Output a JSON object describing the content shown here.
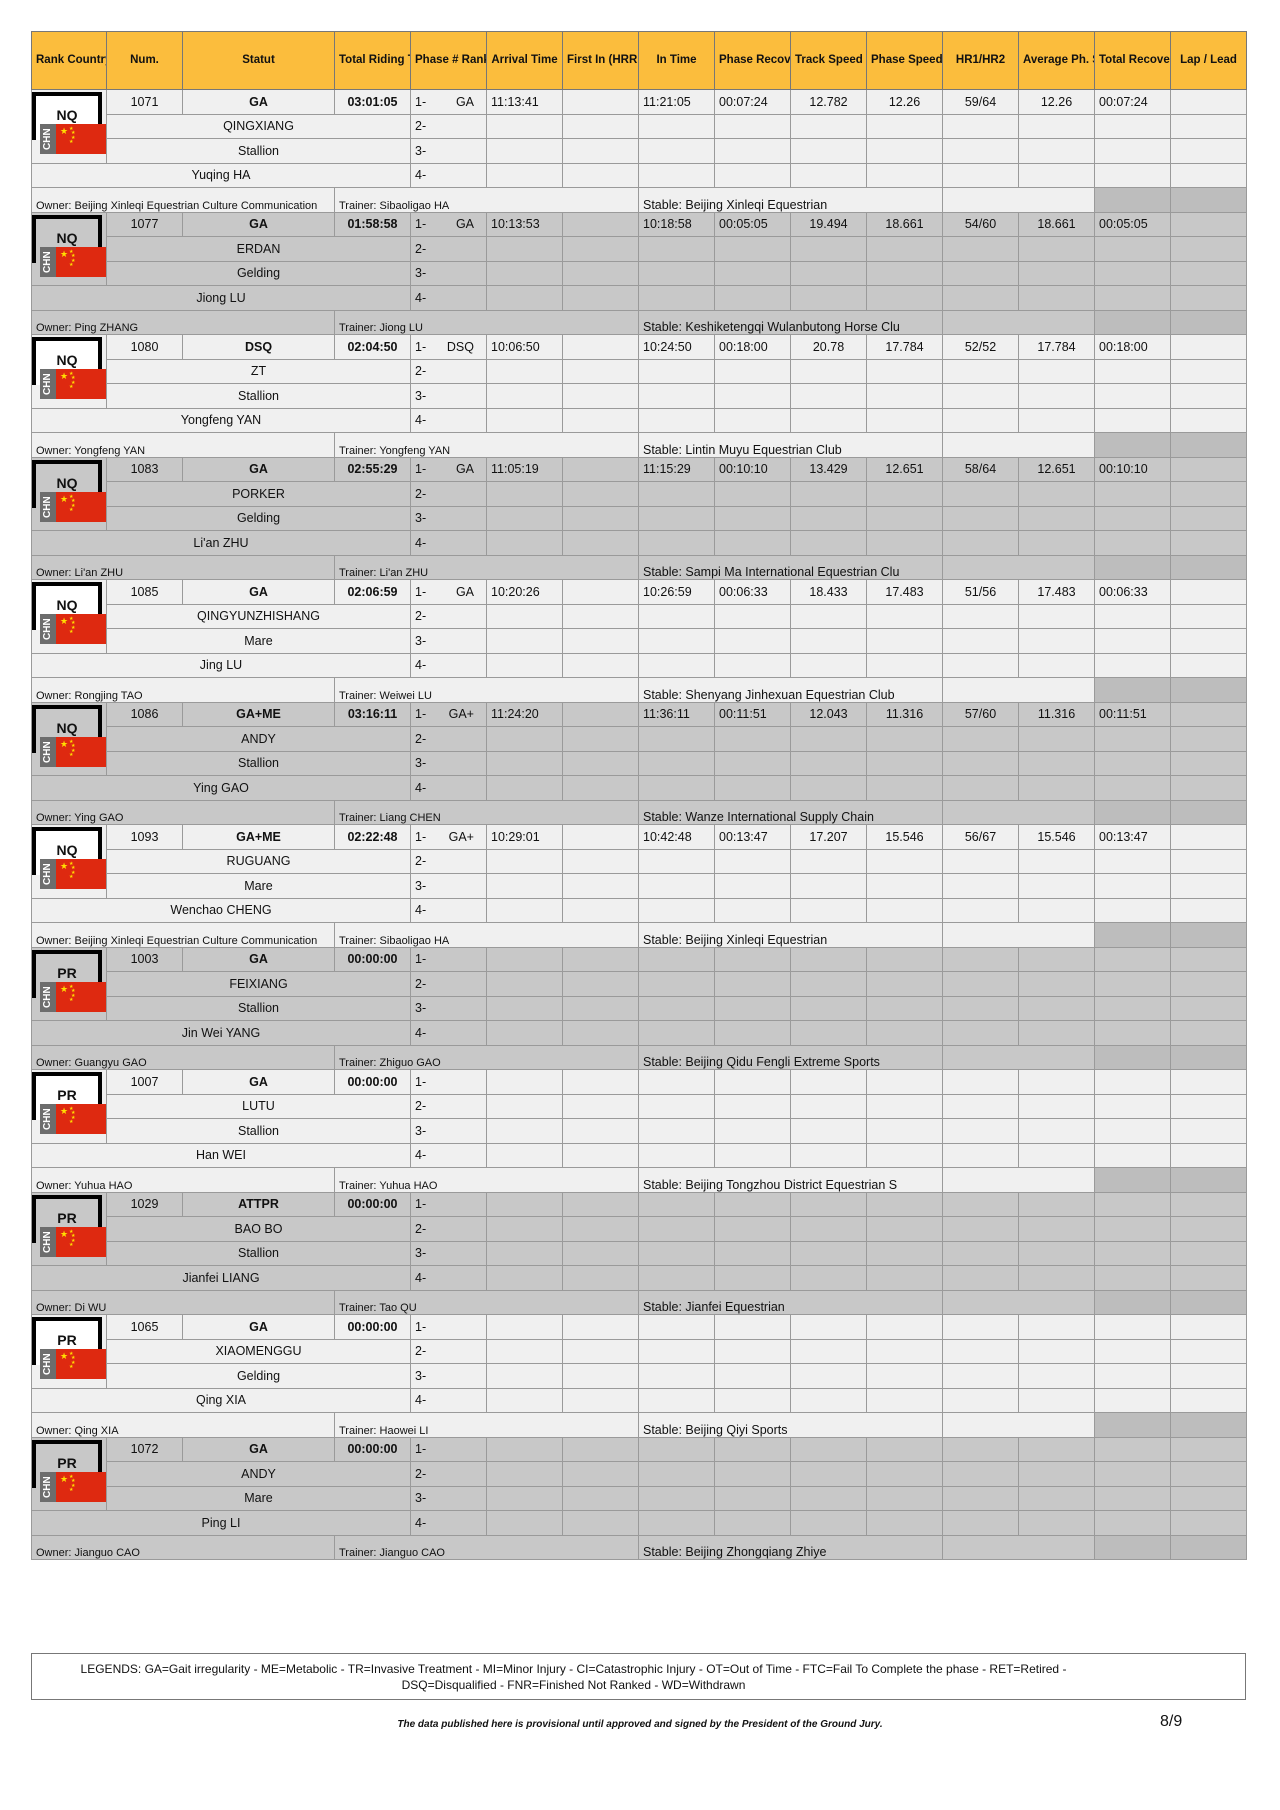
{
  "headers": [
    "Rank Country",
    "Num.",
    "Statut",
    "Total Riding T.",
    "Phase # Rank",
    "Arrival Time",
    "First In (HRRI)",
    "In Time",
    "Phase Recovery",
    "Track Speed",
    "Phase Speed",
    "HR1/HR2",
    "Average Ph. Speed",
    "Total Recovery",
    "Lap / Lead"
  ],
  "phase_labels": [
    "1-",
    "2-",
    "3-",
    "4-"
  ],
  "colors": {
    "header_bg": "#fbbd3d",
    "light_row": "#f0f0f0",
    "grey_row": "#c8c8c8",
    "flag_red": "#de2910"
  },
  "entries": [
    {
      "rank": "NQ",
      "country": "CHN",
      "num": "1071",
      "statut": "GA",
      "total": "03:01:05",
      "phase1_status": "GA",
      "arrival": "11:13:41",
      "first_in": "",
      "in_time": "11:21:05",
      "phase_recovery": "00:07:24",
      "track_speed": "12.782",
      "phase_speed": "12.26",
      "hr": "59/64",
      "avg_speed": "12.26",
      "total_recovery": "00:07:24",
      "lap_lead": "",
      "horse": "QINGXIANG",
      "gender": "Stallion",
      "rider": "Yuqing HA",
      "owner": "Owner: Beijing Xinleqi Equestrian Culture Communication",
      "trainer": "Trainer: Sibaoligao HA",
      "stable": "Stable: Beijing Xinleqi Equestrian"
    },
    {
      "rank": "NQ",
      "country": "CHN",
      "num": "1077",
      "statut": "GA",
      "total": "01:58:58",
      "phase1_status": "GA",
      "arrival": "10:13:53",
      "first_in": "",
      "in_time": "10:18:58",
      "phase_recovery": "00:05:05",
      "track_speed": "19.494",
      "phase_speed": "18.661",
      "hr": "54/60",
      "avg_speed": "18.661",
      "total_recovery": "00:05:05",
      "lap_lead": "",
      "horse": "ERDAN",
      "gender": "Gelding",
      "rider": "Jiong LU",
      "owner": "Owner: Ping ZHANG",
      "trainer": "Trainer: Jiong LU",
      "stable": "Stable: Keshiketengqi Wulanbutong Horse Clu"
    },
    {
      "rank": "NQ",
      "country": "CHN",
      "num": "1080",
      "statut": "DSQ",
      "total": "02:04:50",
      "phase1_status": "DSQ",
      "arrival": "10:06:50",
      "first_in": "",
      "in_time": "10:24:50",
      "phase_recovery": "00:18:00",
      "track_speed": "20.78",
      "phase_speed": "17.784",
      "hr": "52/52",
      "avg_speed": "17.784",
      "total_recovery": "00:18:00",
      "lap_lead": "",
      "horse": "ZT",
      "gender": "Stallion",
      "rider": "Yongfeng YAN",
      "owner": "Owner: Yongfeng YAN",
      "trainer": "Trainer: Yongfeng YAN",
      "stable": "Stable: Lintin Muyu Equestrian Club"
    },
    {
      "rank": "NQ",
      "country": "CHN",
      "num": "1083",
      "statut": "GA",
      "total": "02:55:29",
      "phase1_status": "GA",
      "arrival": "11:05:19",
      "first_in": "",
      "in_time": "11:15:29",
      "phase_recovery": "00:10:10",
      "track_speed": "13.429",
      "phase_speed": "12.651",
      "hr": "58/64",
      "avg_speed": "12.651",
      "total_recovery": "00:10:10",
      "lap_lead": "",
      "horse": "PORKER",
      "gender": "Gelding",
      "rider": "Li'an ZHU",
      "owner": "Owner: Li'an ZHU",
      "trainer": "Trainer: Li'an ZHU",
      "stable": "Stable: Sampi Ma International Equestrian Clu"
    },
    {
      "rank": "NQ",
      "country": "CHN",
      "num": "1085",
      "statut": "GA",
      "total": "02:06:59",
      "phase1_status": "GA",
      "arrival": "10:20:26",
      "first_in": "",
      "in_time": "10:26:59",
      "phase_recovery": "00:06:33",
      "track_speed": "18.433",
      "phase_speed": "17.483",
      "hr": "51/56",
      "avg_speed": "17.483",
      "total_recovery": "00:06:33",
      "lap_lead": "",
      "horse": "QINGYUNZHISHANG",
      "gender": "Mare",
      "rider": "Jing LU",
      "owner": "Owner: Rongjing TAO",
      "trainer": "Trainer: Weiwei LU",
      "stable": "Stable: Shenyang Jinhexuan Equestrian Club"
    },
    {
      "rank": "NQ",
      "country": "CHN",
      "num": "1086",
      "statut": "GA+ME",
      "total": "03:16:11",
      "phase1_status": "GA+",
      "arrival": "11:24:20",
      "first_in": "",
      "in_time": "11:36:11",
      "phase_recovery": "00:11:51",
      "track_speed": "12.043",
      "phase_speed": "11.316",
      "hr": "57/60",
      "avg_speed": "11.316",
      "total_recovery": "00:11:51",
      "lap_lead": "",
      "horse": "ANDY",
      "gender": "Stallion",
      "rider": "Ying GAO",
      "owner": "Owner: Ying GAO",
      "trainer": "Trainer: Liang CHEN",
      "stable": "Stable: Wanze International Supply Chain"
    },
    {
      "rank": "NQ",
      "country": "CHN",
      "num": "1093",
      "statut": "GA+ME",
      "total": "02:22:48",
      "phase1_status": "GA+",
      "arrival": "10:29:01",
      "first_in": "",
      "in_time": "10:42:48",
      "phase_recovery": "00:13:47",
      "track_speed": "17.207",
      "phase_speed": "15.546",
      "hr": "56/67",
      "avg_speed": "15.546",
      "total_recovery": "00:13:47",
      "lap_lead": "",
      "horse": "RUGUANG",
      "gender": "Mare",
      "rider": "Wenchao CHENG",
      "owner": "Owner: Beijing Xinleqi Equestrian Culture Communication",
      "trainer": "Trainer: Sibaoligao HA",
      "stable": "Stable: Beijing Xinleqi Equestrian"
    },
    {
      "rank": "PR",
      "country": "CHN",
      "num": "1003",
      "statut": "GA",
      "total": "00:00:00",
      "phase1_status": "",
      "arrival": "",
      "first_in": "",
      "in_time": "",
      "phase_recovery": "",
      "track_speed": "",
      "phase_speed": "",
      "hr": "",
      "avg_speed": "",
      "total_recovery": "",
      "lap_lead": "",
      "horse": "FEIXIANG",
      "gender": "Stallion",
      "rider": "Jin Wei YANG",
      "owner": "Owner: Guangyu GAO",
      "trainer": "Trainer: Zhiguo GAO",
      "stable": "Stable: Beijing Qidu Fengli Extreme Sports"
    },
    {
      "rank": "PR",
      "country": "CHN",
      "num": "1007",
      "statut": "GA",
      "total": "00:00:00",
      "phase1_status": "",
      "arrival": "",
      "first_in": "",
      "in_time": "",
      "phase_recovery": "",
      "track_speed": "",
      "phase_speed": "",
      "hr": "",
      "avg_speed": "",
      "total_recovery": "",
      "lap_lead": "",
      "horse": "LUTU",
      "gender": "Stallion",
      "rider": "Han WEI",
      "owner": "Owner: Yuhua HAO",
      "trainer": "Trainer: Yuhua HAO",
      "stable": "Stable: Beijing Tongzhou District Equestrian S"
    },
    {
      "rank": "PR",
      "country": "CHN",
      "num": "1029",
      "statut": "ATTPR",
      "total": "00:00:00",
      "phase1_status": "",
      "arrival": "",
      "first_in": "",
      "in_time": "",
      "phase_recovery": "",
      "track_speed": "",
      "phase_speed": "",
      "hr": "",
      "avg_speed": "",
      "total_recovery": "",
      "lap_lead": "",
      "horse": "BAO BO",
      "gender": "Stallion",
      "rider": "Jianfei LIANG",
      "owner": "Owner: Di WU",
      "trainer": "Trainer: Tao QU",
      "stable": "Stable: Jianfei Equestrian"
    },
    {
      "rank": "PR",
      "country": "CHN",
      "num": "1065",
      "statut": "GA",
      "total": "00:00:00",
      "phase1_status": "",
      "arrival": "",
      "first_in": "",
      "in_time": "",
      "phase_recovery": "",
      "track_speed": "",
      "phase_speed": "",
      "hr": "",
      "avg_speed": "",
      "total_recovery": "",
      "lap_lead": "",
      "horse": "XIAOMENGGU",
      "gender": "Gelding",
      "rider": "Qing XIA",
      "owner": "Owner: Qing XIA",
      "trainer": "Trainer: Haowei LI",
      "stable": "Stable: Beijing Qiyi Sports"
    },
    {
      "rank": "PR",
      "country": "CHN",
      "num": "1072",
      "statut": "GA",
      "total": "00:00:00",
      "phase1_status": "",
      "arrival": "",
      "first_in": "",
      "in_time": "",
      "phase_recovery": "",
      "track_speed": "",
      "phase_speed": "",
      "hr": "",
      "avg_speed": "",
      "total_recovery": "",
      "lap_lead": "",
      "horse": "ANDY",
      "gender": "Mare",
      "rider": "Ping LI",
      "owner": "Owner: Jianguo CAO",
      "trainer": "Trainer: Jianguo CAO",
      "stable": "Stable: Beijing Zhongqiang Zhiye"
    }
  ],
  "legend": "LEGENDS: GA=Gait irregularity - ME=Metabolic - TR=Invasive Treatment - MI=Minor Injury - CI=Catastrophic Injury - OT=Out of Time - FTC=Fail To Complete the phase - RET=Retired - DSQ=Disqualified - FNR=Finished Not Ranked - WD=Withdrawn",
  "disclaimer": "The data published here is provisional until approved and signed by the President of the Ground Jury.",
  "page": "8/9"
}
